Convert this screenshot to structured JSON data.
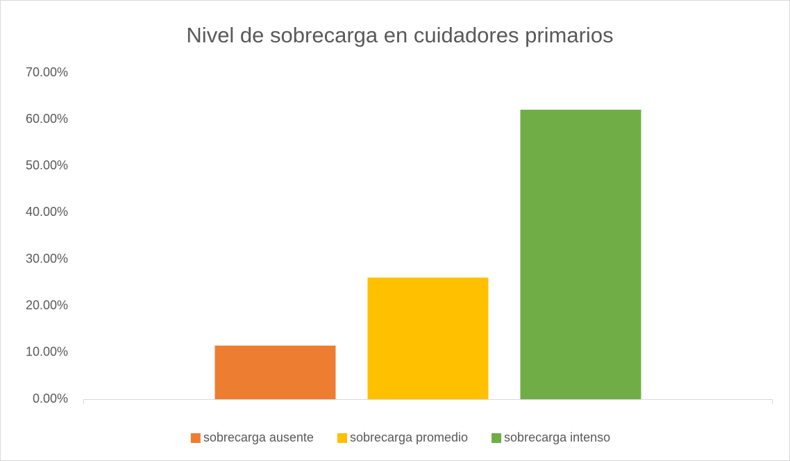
{
  "chart_data": {
    "type": "bar",
    "title": "Nivel de sobrecarga en cuidadores primarios",
    "categories": [
      null
    ],
    "series": [
      {
        "name": "sobrecarga ausente",
        "color": "#ed7d31",
        "values": [
          11.5
        ]
      },
      {
        "name": "sobrecarga promedio",
        "color": "#ffc000",
        "values": [
          26.1
        ]
      },
      {
        "name": "sobrecarga intenso",
        "color": "#70ad47",
        "values": [
          62.1
        ]
      }
    ],
    "ylim": [
      0,
      70
    ],
    "yticks": [
      {
        "value": 0,
        "label": "0.00%"
      },
      {
        "value": 10,
        "label": "10.00%"
      },
      {
        "value": 20,
        "label": "20.00%"
      },
      {
        "value": 30,
        "label": "30.00%"
      },
      {
        "value": 40,
        "label": "40.00%"
      },
      {
        "value": 50,
        "label": "50.00%"
      },
      {
        "value": 60,
        "label": "60.00%"
      },
      {
        "value": 70,
        "label": "70.00%"
      }
    ],
    "grid": false,
    "legend": "bottom"
  }
}
